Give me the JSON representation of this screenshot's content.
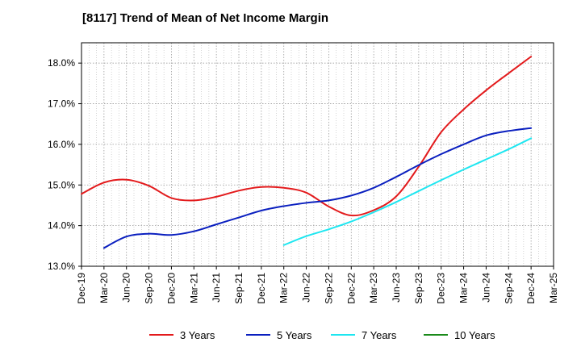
{
  "chart_data": {
    "type": "line",
    "title": "[8117]  Trend of Mean of Net Income Margin",
    "xlabel": "",
    "ylabel": "",
    "ylim": [
      13.0,
      18.5
    ],
    "yticks": [
      13.0,
      14.0,
      15.0,
      16.0,
      17.0,
      18.0
    ],
    "ytick_labels": [
      "13.0%",
      "14.0%",
      "15.0%",
      "16.0%",
      "17.0%",
      "18.0%"
    ],
    "categories": [
      "Dec-19",
      "Mar-20",
      "Jun-20",
      "Sep-20",
      "Dec-20",
      "Mar-21",
      "Jun-21",
      "Sep-21",
      "Dec-21",
      "Mar-22",
      "Jun-22",
      "Sep-22",
      "Dec-22",
      "Mar-23",
      "Jun-23",
      "Sep-23",
      "Dec-23",
      "Mar-24",
      "Jun-24",
      "Sep-24",
      "Dec-24",
      "Mar-25"
    ],
    "grid": true,
    "legend_position": "bottom",
    "series": [
      {
        "name": "3 Years",
        "color": "#e31a1c",
        "values": [
          14.78,
          15.06,
          15.13,
          14.98,
          14.68,
          14.62,
          14.71,
          14.86,
          14.95,
          14.93,
          14.81,
          14.47,
          14.25,
          14.38,
          14.72,
          15.45,
          16.3,
          16.86,
          17.33,
          17.75,
          18.16,
          null
        ]
      },
      {
        "name": "5 Years",
        "color": "#0a1fbf",
        "values": [
          null,
          13.45,
          13.73,
          13.8,
          13.77,
          13.86,
          14.03,
          14.2,
          14.37,
          14.48,
          14.56,
          14.62,
          14.74,
          14.93,
          15.2,
          15.49,
          15.76,
          16.0,
          16.22,
          16.33,
          16.4,
          null
        ]
      },
      {
        "name": "7 Years",
        "color": "#1ee6f0",
        "values": [
          null,
          null,
          null,
          null,
          null,
          null,
          null,
          null,
          null,
          13.52,
          13.74,
          13.91,
          14.1,
          14.33,
          14.58,
          14.85,
          15.12,
          15.38,
          15.63,
          15.88,
          16.15,
          null
        ]
      },
      {
        "name": "10 Years",
        "color": "#1a8a1a",
        "values": [
          null,
          null,
          null,
          null,
          null,
          null,
          null,
          null,
          null,
          null,
          null,
          null,
          null,
          null,
          null,
          null,
          null,
          null,
          null,
          null,
          null,
          null
        ]
      }
    ]
  }
}
